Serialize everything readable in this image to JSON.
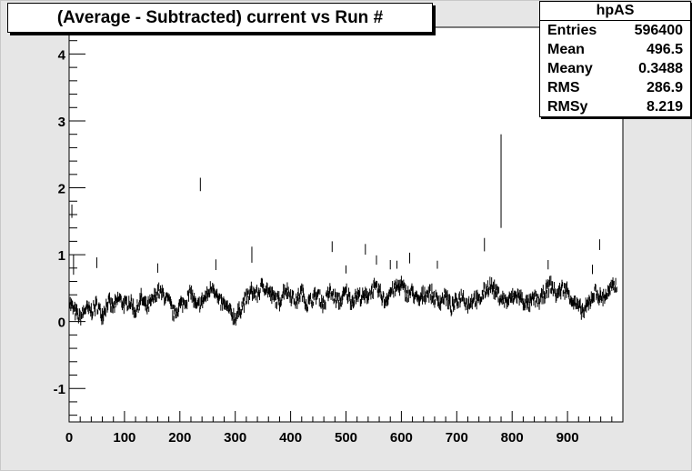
{
  "chart_data": {
    "type": "scatter",
    "title": "(Average - Subtracted) current vs Run #",
    "xlabel": "",
    "ylabel": "",
    "xlim": [
      0,
      1000
    ],
    "ylim": [
      -1.5,
      4.4
    ],
    "grid": false,
    "x_ticks": [
      0,
      100,
      200,
      300,
      400,
      500,
      600,
      700,
      800,
      900
    ],
    "x_tick_labels": [
      "0",
      "100",
      "200",
      "300",
      "400",
      "500",
      "600",
      "700",
      "800",
      "900"
    ],
    "y_ticks": [
      -1,
      0,
      1,
      2,
      3,
      4
    ],
    "y_tick_labels": [
      "-1",
      "0",
      "1",
      "2",
      "3",
      "4"
    ],
    "baseline_segments": [
      [
        0,
        0.3
      ],
      [
        10,
        0.15
      ],
      [
        20,
        0.05
      ],
      [
        30,
        0.2
      ],
      [
        40,
        0.15
      ],
      [
        50,
        0.25
      ],
      [
        60,
        0.1
      ],
      [
        70,
        0.3
      ],
      [
        80,
        0.2
      ],
      [
        90,
        0.35
      ],
      [
        100,
        0.25
      ],
      [
        110,
        0.3
      ],
      [
        120,
        0.15
      ],
      [
        130,
        0.35
      ],
      [
        140,
        0.2
      ],
      [
        150,
        0.3
      ],
      [
        160,
        0.45
      ],
      [
        170,
        0.4
      ],
      [
        180,
        0.3
      ],
      [
        190,
        0.1
      ],
      [
        200,
        0.25
      ],
      [
        210,
        0.3
      ],
      [
        220,
        0.45
      ],
      [
        230,
        0.2
      ],
      [
        240,
        0.3
      ],
      [
        250,
        0.4
      ],
      [
        260,
        0.55
      ],
      [
        270,
        0.3
      ],
      [
        280,
        0.25
      ],
      [
        290,
        0.15
      ],
      [
        300,
        0.05
      ],
      [
        310,
        0.2
      ],
      [
        320,
        0.35
      ],
      [
        330,
        0.45
      ],
      [
        340,
        0.4
      ],
      [
        350,
        0.55
      ],
      [
        360,
        0.45
      ],
      [
        370,
        0.35
      ],
      [
        380,
        0.3
      ],
      [
        390,
        0.5
      ],
      [
        400,
        0.4
      ],
      [
        410,
        0.3
      ],
      [
        420,
        0.45
      ],
      [
        430,
        0.25
      ],
      [
        440,
        0.35
      ],
      [
        450,
        0.4
      ],
      [
        460,
        0.25
      ],
      [
        470,
        0.45
      ],
      [
        480,
        0.35
      ],
      [
        490,
        0.3
      ],
      [
        500,
        0.45
      ],
      [
        510,
        0.3
      ],
      [
        520,
        0.4
      ],
      [
        530,
        0.35
      ],
      [
        540,
        0.4
      ],
      [
        550,
        0.5
      ],
      [
        560,
        0.45
      ],
      [
        570,
        0.3
      ],
      [
        580,
        0.45
      ],
      [
        590,
        0.5
      ],
      [
        600,
        0.55
      ],
      [
        610,
        0.4
      ],
      [
        620,
        0.45
      ],
      [
        630,
        0.3
      ],
      [
        640,
        0.4
      ],
      [
        650,
        0.45
      ],
      [
        660,
        0.35
      ],
      [
        670,
        0.3
      ],
      [
        680,
        0.4
      ],
      [
        690,
        0.2
      ],
      [
        700,
        0.3
      ],
      [
        710,
        0.4
      ],
      [
        720,
        0.25
      ],
      [
        730,
        0.35
      ],
      [
        740,
        0.3
      ],
      [
        750,
        0.45
      ],
      [
        760,
        0.55
      ],
      [
        770,
        0.45
      ],
      [
        780,
        0.35
      ],
      [
        790,
        0.3
      ],
      [
        800,
        0.35
      ],
      [
        810,
        0.4
      ],
      [
        820,
        0.3
      ],
      [
        830,
        0.25
      ],
      [
        840,
        0.35
      ],
      [
        850,
        0.3
      ],
      [
        860,
        0.45
      ],
      [
        870,
        0.55
      ],
      [
        880,
        0.4
      ],
      [
        890,
        0.5
      ],
      [
        900,
        0.45
      ],
      [
        910,
        0.3
      ],
      [
        920,
        0.2
      ],
      [
        930,
        0.15
      ],
      [
        940,
        0.3
      ],
      [
        950,
        0.45
      ],
      [
        960,
        0.35
      ],
      [
        970,
        0.4
      ],
      [
        980,
        0.5
      ],
      [
        990,
        0.55
      ]
    ],
    "outliers": [
      {
        "x": 5,
        "y": 1.65,
        "err": 0.1
      },
      {
        "x": 8,
        "y": 0.85,
        "err": 0.15
      },
      {
        "x": 50,
        "y": 0.88,
        "err": 0.08
      },
      {
        "x": 160,
        "y": 0.8,
        "err": 0.07
      },
      {
        "x": 237,
        "y": 2.05,
        "err": 0.1
      },
      {
        "x": 265,
        "y": 0.85,
        "err": 0.08
      },
      {
        "x": 330,
        "y": 1.0,
        "err": 0.12
      },
      {
        "x": 475,
        "y": 1.12,
        "err": 0.08
      },
      {
        "x": 500,
        "y": 0.78,
        "err": 0.06
      },
      {
        "x": 535,
        "y": 1.08,
        "err": 0.08
      },
      {
        "x": 555,
        "y": 0.92,
        "err": 0.07
      },
      {
        "x": 580,
        "y": 0.85,
        "err": 0.07
      },
      {
        "x": 592,
        "y": 0.85,
        "err": 0.06
      },
      {
        "x": 615,
        "y": 0.95,
        "err": 0.08
      },
      {
        "x": 665,
        "y": 0.85,
        "err": 0.06
      },
      {
        "x": 750,
        "y": 1.15,
        "err": 0.1
      },
      {
        "x": 780,
        "y": 2.1,
        "err": 0.7
      },
      {
        "x": 865,
        "y": 0.85,
        "err": 0.07
      },
      {
        "x": 945,
        "y": 0.78,
        "err": 0.07
      },
      {
        "x": 958,
        "y": 1.15,
        "err": 0.08
      }
    ]
  },
  "stats": {
    "name": "hpAS",
    "rows": [
      {
        "label": "Entries",
        "value": "596400"
      },
      {
        "label": "Mean",
        "value": "496.5"
      },
      {
        "label": "Meany",
        "value": "0.3488"
      },
      {
        "label": "RMS",
        "value": "286.9"
      },
      {
        "label": "RMSy",
        "value": "8.219"
      }
    ]
  }
}
